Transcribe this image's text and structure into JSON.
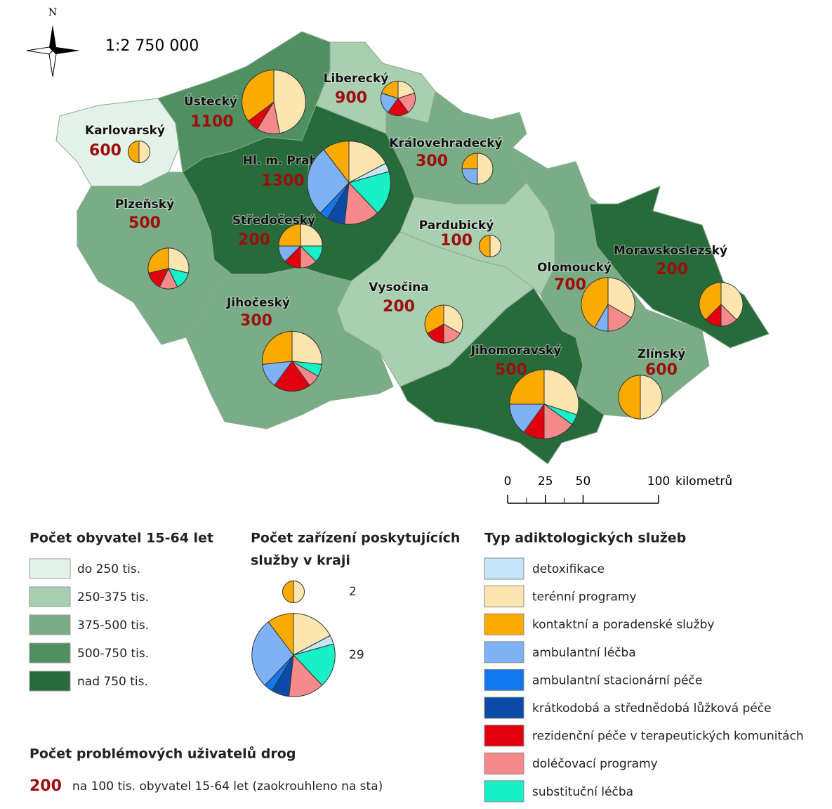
{
  "north": "N",
  "scale": "1:2 750 000",
  "scalebar": {
    "ticks": [
      0,
      25,
      50,
      100
    ],
    "unit": "kilometrů"
  },
  "types": [
    "detoxifikace",
    "terénní programy",
    "kontaktní a poradenské služby",
    "ambulantní léčba",
    "ambulantní stacionární péče",
    "krátkodobá a střednědobá lůžková péče",
    "rezidenční péče v terapeutických komunitách",
    "doléčovací programy",
    "substituční léčba"
  ],
  "type_colors": [
    "#c5e6f8",
    "#fde5b0",
    "#fbab00",
    "#7eb2f5",
    "#1278f0",
    "#0c4aa8",
    "#e2000f",
    "#f68a8a",
    "#18f0c8"
  ],
  "population_legend": {
    "title": "Počet obyvatel 15-64 let",
    "classes": [
      "do 250 tis.",
      "250-375 tis.",
      "375-500 tis.",
      "500-750 tis.",
      "nad 750 tis."
    ],
    "colors": [
      "#e4f3e9",
      "#a9cfb1",
      "#7aad86",
      "#4f8f60",
      "#276b3b"
    ]
  },
  "facilities_legend": {
    "title_lines": [
      "Počet zařízení poskytujících",
      "služby v kraji"
    ]
  },
  "legend_pies": [
    {
      "total": 2,
      "counts": [
        0,
        1,
        1,
        0,
        0,
        0,
        0,
        0,
        0
      ]
    },
    {
      "total": 29,
      "counts": [
        1,
        5,
        3,
        8,
        1,
        2,
        0,
        4,
        5
      ]
    }
  ],
  "types_legend": {
    "title": "Typ adiktologických služeb"
  },
  "users_legend": {
    "title": "Počet problémových uživatelů drog",
    "example": 200,
    "text": "na 100 tis. obyvatel 15-64 let (zaokrouhleno na sta)"
  },
  "regions": [
    {
      "name": "Karlovarský",
      "rate": 600,
      "class": 0,
      "counts": [
        0,
        1,
        1,
        0,
        0,
        0,
        0,
        0,
        0
      ]
    },
    {
      "name": "Ústecký",
      "rate": 1100,
      "class": 3,
      "counts": [
        0,
        8,
        6,
        0,
        0,
        0,
        1,
        2,
        0
      ]
    },
    {
      "name": "Liberecký",
      "rate": 900,
      "class": 1,
      "counts": [
        0,
        1,
        1,
        1,
        0,
        0,
        1,
        1,
        0
      ]
    },
    {
      "name": "Královehradecký",
      "rate": 300,
      "class": 2,
      "counts": [
        0,
        2,
        1,
        1,
        0,
        0,
        0,
        0,
        0
      ]
    },
    {
      "name": "Středočeský",
      "rate": 200,
      "class": 4,
      "counts": [
        0,
        2,
        2,
        1,
        0,
        0,
        1,
        1,
        1
      ]
    },
    {
      "name": "Hl. m. Praha",
      "rate": 1300,
      "class": 4,
      "counts": [
        1,
        5,
        3,
        8,
        1,
        2,
        0,
        4,
        5
      ]
    },
    {
      "name": "Plzeňský",
      "rate": 500,
      "class": 2,
      "counts": [
        0,
        2,
        2,
        0,
        0,
        0,
        1,
        1,
        1
      ]
    },
    {
      "name": "Pardubický",
      "rate": 100,
      "class": 1,
      "counts": [
        0,
        1,
        1,
        0,
        0,
        0,
        0,
        0,
        0
      ]
    },
    {
      "name": "Vysočina",
      "rate": 200,
      "class": 1,
      "counts": [
        0,
        2,
        2,
        0,
        0,
        0,
        1,
        1,
        0
      ]
    },
    {
      "name": "Jihočeský",
      "rate": 300,
      "class": 2,
      "counts": [
        0,
        4,
        4,
        2,
        0,
        0,
        3,
        1,
        1
      ]
    },
    {
      "name": "Olomoucký",
      "rate": 700,
      "class": 2,
      "counts": [
        0,
        4,
        5,
        1,
        0,
        0,
        0,
        2,
        0
      ]
    },
    {
      "name": "Moravskoslezský",
      "rate": 200,
      "class": 4,
      "counts": [
        0,
        3,
        3,
        0,
        0,
        0,
        1,
        1,
        0
      ]
    },
    {
      "name": "Jihomoravský",
      "rate": 500,
      "class": 4,
      "counts": [
        0,
        6,
        5,
        3,
        0,
        0,
        2,
        3,
        1
      ]
    },
    {
      "name": "Zlínský",
      "rate": 600,
      "class": 2,
      "counts": [
        0,
        4,
        4,
        0,
        0,
        0,
        0,
        0,
        0
      ]
    }
  ]
}
